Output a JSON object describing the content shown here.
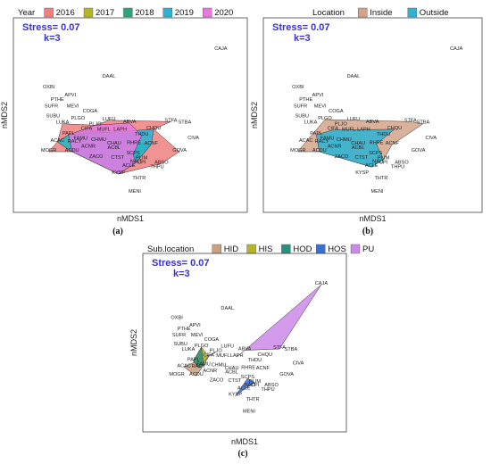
{
  "chart_data": [
    {
      "type": "scatter",
      "panel": "(a)",
      "stress": "Stress= 0.07",
      "k": "k=3",
      "xlabel": "nMDS1",
      "ylabel": "nMDS2",
      "legend_title": "Year",
      "legend_position": "top",
      "groups": [
        {
          "name": "2016",
          "color": "#f08080",
          "hull": [
            "MOGR",
            "ACAC",
            "LUKA",
            "PLJO",
            "LUFU",
            "STFA",
            "CHQU",
            "GOVA",
            "ABSO",
            "THRR",
            "KYSP",
            "ACDU"
          ]
        },
        {
          "name": "2017",
          "color": "#b5b52a",
          "hull": [
            "ACAC",
            "PAPL",
            "ACNF",
            "KYSP",
            "ACDU"
          ]
        },
        {
          "name": "2018",
          "color": "#2fa37a",
          "hull": [
            "PAPL",
            "CIFA",
            "THDU",
            "RHRE",
            "ACNF",
            "NALI",
            "KYSP",
            "ACDU"
          ]
        },
        {
          "name": "2019",
          "color": "#29b4d4",
          "hull": [
            "ACAC",
            "PAPL",
            "CHQU",
            "ACNF",
            "NALI",
            "KYSP",
            "ACDU"
          ]
        },
        {
          "name": "2020",
          "color": "#e878e0",
          "hull": [
            "PAPL",
            "PLJO",
            "ABVA",
            "THDU",
            "SCPS",
            "NALI",
            "KYSP",
            "ACDU"
          ]
        }
      ]
    },
    {
      "type": "scatter",
      "panel": "(b)",
      "stress": "Stress= 0.07",
      "k": "k=3",
      "xlabel": "nMDS1",
      "ylabel": "nMDS2",
      "legend_title": "Location",
      "legend_position": "top",
      "groups": [
        {
          "name": "Inside",
          "color": "#d4a38a",
          "hull": [
            "MOGR",
            "ACAC",
            "PLGO",
            "LUFU",
            "STFA",
            "STBA",
            "ACNF",
            "PLIM",
            "ACLE",
            "ACDU"
          ]
        },
        {
          "name": "Outside",
          "color": "#29b4d4",
          "hull": [
            "PAPL",
            "CIFA",
            "CHQU",
            "RHRE",
            "PLIM",
            "NALI",
            "ACLE",
            "ACDU"
          ]
        }
      ]
    },
    {
      "type": "scatter",
      "panel": "(c)",
      "stress": "Stress= 0.07",
      "k": "k=3",
      "xlabel": "nMDS1",
      "ylabel": "nMDS2",
      "legend_title": "Sub.location",
      "legend_position": "top",
      "groups": [
        {
          "name": "HID",
          "color": "#c9a080",
          "hull": [
            "ACAC",
            "PLJO",
            "CIFA",
            "FAMU",
            "ACDU"
          ]
        },
        {
          "name": "HIS",
          "color": "#b5b52a",
          "hull": [
            "PAPL",
            "PLGO",
            "CIFA",
            "RACY"
          ]
        },
        {
          "name": "HOD",
          "color": "#2f8f7a",
          "hull": [
            "PAPL",
            "PLGO",
            "FAMU",
            "RACY"
          ]
        },
        {
          "name": "HOS",
          "color": "#3a6fd8",
          "hull": [
            "SCPS",
            "PLIM",
            "NALI",
            "ACLE",
            "KYSP"
          ]
        },
        {
          "name": "PU",
          "color": "#cc88e8",
          "hull": [
            "LAPH",
            "ABVA",
            "STFA",
            "CAJA"
          ]
        }
      ]
    }
  ],
  "points": [
    {
      "label": "CAJA",
      "x": 1.0,
      "y": 0.95
    },
    {
      "label": "DAAL",
      "x": -0.3,
      "y": 0.55
    },
    {
      "label": "OXBI",
      "x": -1.0,
      "y": 0.4
    },
    {
      "label": "APVI",
      "x": -0.75,
      "y": 0.28
    },
    {
      "label": "PTHE",
      "x": -0.9,
      "y": 0.22
    },
    {
      "label": "SUFR",
      "x": -0.97,
      "y": 0.12
    },
    {
      "label": "MEVI",
      "x": -0.72,
      "y": 0.12
    },
    {
      "label": "COGA",
      "x": -0.52,
      "y": 0.05
    },
    {
      "label": "SUBU",
      "x": -0.95,
      "y": -0.02
    },
    {
      "label": "PLGO",
      "x": -0.66,
      "y": -0.05
    },
    {
      "label": "LUKA",
      "x": -0.84,
      "y": -0.11
    },
    {
      "label": "PLJO",
      "x": -0.46,
      "y": -0.13
    },
    {
      "label": "LUFU",
      "x": -0.3,
      "y": -0.06
    },
    {
      "label": "ABVA",
      "x": -0.06,
      "y": -0.1
    },
    {
      "label": "STFA",
      "x": 0.42,
      "y": -0.08
    },
    {
      "label": "STBA",
      "x": 0.58,
      "y": -0.11
    },
    {
      "label": "CIFA",
      "x": -0.56,
      "y": -0.2
    },
    {
      "label": "MUFL",
      "x": -0.36,
      "y": -0.21
    },
    {
      "label": "LAPH",
      "x": -0.17,
      "y": -0.21
    },
    {
      "label": "CHQU",
      "x": 0.22,
      "y": -0.19
    },
    {
      "label": "PAPL",
      "x": -0.77,
      "y": -0.27
    },
    {
      "label": "THDU",
      "x": 0.08,
      "y": -0.28
    },
    {
      "label": "FAMU",
      "x": -0.63,
      "y": -0.34
    },
    {
      "label": "CHMU",
      "x": -0.42,
      "y": -0.36
    },
    {
      "label": "CIVA",
      "x": 0.68,
      "y": -0.33
    },
    {
      "label": "ACAC",
      "x": -0.9,
      "y": -0.37
    },
    {
      "label": "RACY",
      "x": -0.7,
      "y": -0.38
    },
    {
      "label": "CHAU",
      "x": -0.24,
      "y": -0.41
    },
    {
      "label": "RHRE",
      "x": -0.01,
      "y": -0.4
    },
    {
      "label": "ACNF",
      "x": 0.19,
      "y": -0.41
    },
    {
      "label": "ACNR",
      "x": -0.54,
      "y": -0.45
    },
    {
      "label": "ACBL",
      "x": -0.24,
      "y": -0.47
    },
    {
      "label": "MOGR",
      "x": -1.0,
      "y": -0.51
    },
    {
      "label": "ACDU",
      "x": -0.73,
      "y": -0.51
    },
    {
      "label": "GOVA",
      "x": 0.52,
      "y": -0.51
    },
    {
      "label": "SCPS",
      "x": -0.02,
      "y": -0.55
    },
    {
      "label": "ZACO",
      "x": -0.45,
      "y": -0.6
    },
    {
      "label": "CTST",
      "x": -0.2,
      "y": -0.61
    },
    {
      "label": "PLIM",
      "x": 0.08,
      "y": -0.62
    },
    {
      "label": "NALI",
      "x": 0.01,
      "y": -0.67
    },
    {
      "label": "CPI",
      "x": 0.08,
      "y": -0.68
    },
    {
      "label": "ABSO",
      "x": 0.31,
      "y": -0.68
    },
    {
      "label": "ACLE",
      "x": -0.07,
      "y": -0.73
    },
    {
      "label": "THPU",
      "x": 0.26,
      "y": -0.75
    },
    {
      "label": "KYSP",
      "x": -0.19,
      "y": -0.83
    },
    {
      "label": "THTR",
      "x": 0.05,
      "y": -0.91
    },
    {
      "label": "MENI",
      "x": 0.0,
      "y": -1.1
    }
  ],
  "captions": {
    "a": "(a)",
    "b": "(b)",
    "c": "(c)"
  }
}
